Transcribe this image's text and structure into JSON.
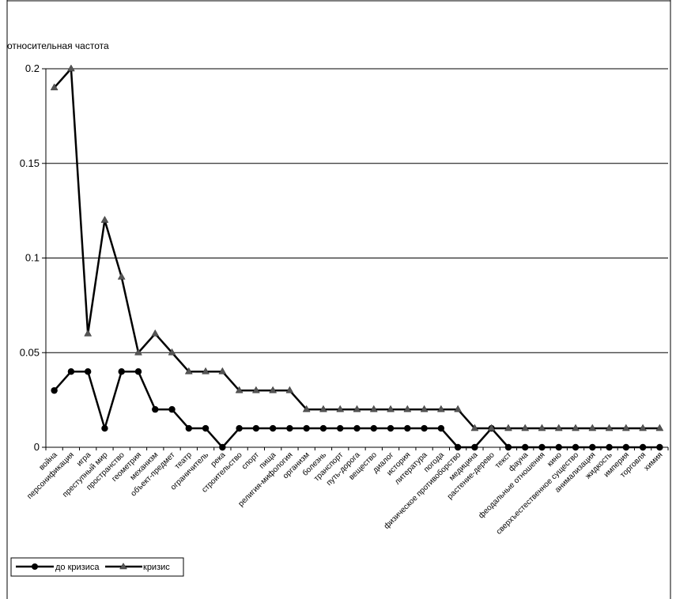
{
  "chart_data": {
    "type": "line",
    "title": "",
    "xlabel": "",
    "ylabel": "относительная частота",
    "ylim": [
      0,
      0.2
    ],
    "yticks": [
      "0",
      "0.05",
      "0.1",
      "0.15",
      "0.2"
    ],
    "ytick_values": [
      0,
      0.05,
      0.1,
      0.15,
      0.2
    ],
    "grid": true,
    "legend_position": "bottom-left",
    "categories": [
      "война",
      "персонификация",
      "игра",
      "преступный мир",
      "пространство",
      "геометрия",
      "механизм",
      "объект-предмет",
      "театр",
      "ограничитель",
      "река",
      "строительство",
      "спорт",
      "пища",
      "религия-мифология",
      "организм",
      "болезнь",
      "транспорт",
      "путь-дорога",
      "вещество",
      "диалог",
      "история",
      "литература",
      "погода",
      "физическое противоборство",
      "медицина",
      "растение-дерево",
      "текст",
      "фауна",
      "феодальные отношения",
      "кино",
      "сверхъестественное существо",
      "анимализация",
      "жидкость",
      "империя",
      "торговля",
      "химия"
    ],
    "series": [
      {
        "name": "до кризиса",
        "marker": "circle",
        "color": "#000000",
        "values": [
          0.03,
          0.04,
          0.04,
          0.01,
          0.04,
          0.04,
          0.02,
          0.02,
          0.01,
          0.01,
          0.0,
          0.01,
          0.01,
          0.01,
          0.01,
          0.01,
          0.01,
          0.01,
          0.01,
          0.01,
          0.01,
          0.01,
          0.01,
          0.01,
          0.0,
          0.0,
          0.01,
          0.0,
          0.0,
          0.0,
          0.0,
          0.0,
          0.0,
          0.0,
          0.0,
          0.0,
          0.0
        ]
      },
      {
        "name": "кризис",
        "marker": "triangle",
        "color": "#555555",
        "values": [
          0.19,
          0.2,
          0.06,
          0.12,
          0.09,
          0.05,
          0.06,
          0.05,
          0.04,
          0.04,
          0.04,
          0.03,
          0.03,
          0.03,
          0.03,
          0.02,
          0.02,
          0.02,
          0.02,
          0.02,
          0.02,
          0.02,
          0.02,
          0.02,
          0.02,
          0.01,
          0.01,
          0.01,
          0.01,
          0.01,
          0.01,
          0.01,
          0.01,
          0.01,
          0.01,
          0.01,
          0.01
        ]
      }
    ]
  }
}
